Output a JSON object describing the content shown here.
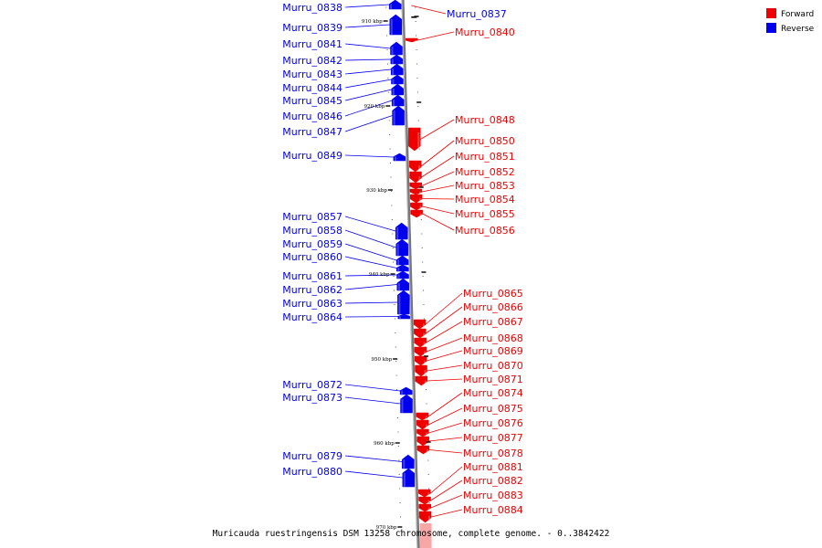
{
  "caption": "Muricauda ruestringensis DSM 13258 chromosome, complete genome. - 0..3842422",
  "legend": [
    {
      "label": "Forward",
      "color": "#ee0000"
    },
    {
      "label": "Reverse",
      "color": "#0000ee"
    }
  ],
  "colors": {
    "forward": "#ee0000",
    "reverse": "#0000ee",
    "axis": "#888888"
  },
  "ticks": [
    "910 kbp",
    "920 kbp",
    "930 kbp",
    "940 kbp",
    "950 kbp",
    "960 kbp",
    "970 kbp"
  ],
  "genes_reverse": [
    "Murru_0838",
    "Murru_0839",
    "Murru_0841",
    "Murru_0842",
    "Murru_0843",
    "Murru_0844",
    "Murru_0845",
    "Murru_0846",
    "Murru_0847",
    "Murru_0849",
    "Murru_0857",
    "Murru_0858",
    "Murru_0859",
    "Murru_0860",
    "Murru_0861",
    "Murru_0862",
    "Murru_0863",
    "Murru_0864",
    "Murru_0872",
    "Murru_0873",
    "Murru_0879",
    "Murru_0880"
  ],
  "genes_forward": [
    "Murru_0837",
    "Murru_0840",
    "Murru_0848",
    "Murru_0850",
    "Murru_0851",
    "Murru_0852",
    "Murru_0853",
    "Murru_0854",
    "Murru_0855",
    "Murru_0856",
    "Murru_0865",
    "Murru_0866",
    "Murru_0867",
    "Murru_0868",
    "Murru_0869",
    "Murru_0870",
    "Murru_0871",
    "Murru_0874",
    "Murru_0875",
    "Murru_0876",
    "Murru_0877",
    "Murru_0878",
    "Murru_0881",
    "Murru_0882",
    "Murru_0883",
    "Murru_0884"
  ]
}
